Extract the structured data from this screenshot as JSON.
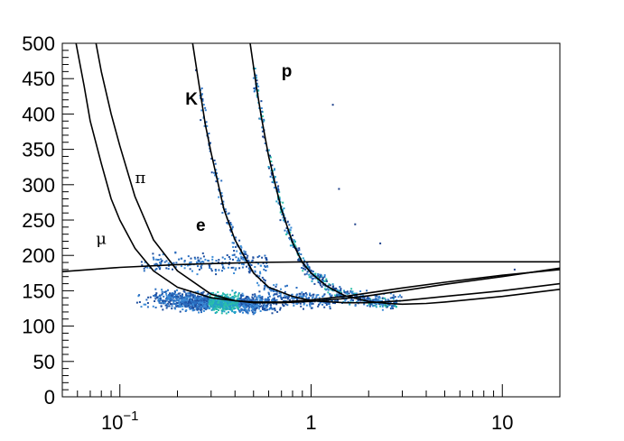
{
  "chart_data": {
    "type": "scatter",
    "title": "",
    "xlabel": "",
    "ylabel": "",
    "x_scale": "log",
    "xlim": [
      0.05,
      20
    ],
    "ylim": [
      0,
      500
    ],
    "grid": false,
    "x_ticks": [
      {
        "value": 0.1,
        "base": "10",
        "exp": "−1"
      },
      {
        "value": 1,
        "base": "1",
        "exp": ""
      },
      {
        "value": 10,
        "base": "10",
        "exp": ""
      }
    ],
    "y_ticks": [
      {
        "value": 0,
        "label": "0"
      },
      {
        "value": 50,
        "label": "50"
      },
      {
        "value": 100,
        "label": "100"
      },
      {
        "value": 150,
        "label": "150"
      },
      {
        "value": 200,
        "label": "200"
      },
      {
        "value": 250,
        "label": "250"
      },
      {
        "value": 300,
        "label": "300"
      },
      {
        "value": 350,
        "label": "350"
      },
      {
        "value": 400,
        "label": "400"
      },
      {
        "value": 450,
        "label": "450"
      },
      {
        "value": 500,
        "label": "500"
      }
    ],
    "curve_labels": [
      {
        "text": "p",
        "x": 0.7,
        "y": 453,
        "style": "bold"
      },
      {
        "text": "K",
        "x": 0.22,
        "y": 413,
        "style": "bold"
      },
      {
        "text": "π",
        "x": 0.12,
        "y": 302,
        "style": "greek"
      },
      {
        "text": "e",
        "x": 0.25,
        "y": 235,
        "style": "bold"
      },
      {
        "text": "μ",
        "x": 0.075,
        "y": 216,
        "style": "greek"
      }
    ],
    "series": [
      {
        "x": [
          0.05,
          0.1,
          0.2,
          0.5,
          1,
          2,
          5,
          10,
          20
        ],
        "y": [
          177,
          183,
          187,
          190,
          191,
          191,
          191,
          191,
          191
        ]
      },
      {
        "x": [
          0.059,
          0.065,
          0.07,
          0.08,
          0.09,
          0.1,
          0.12,
          0.15,
          0.2,
          0.3,
          0.4,
          0.5,
          0.7,
          1,
          1.5,
          2,
          3,
          5,
          10,
          20
        ],
        "y": [
          500,
          440,
          390,
          330,
          280,
          250,
          210,
          178,
          155,
          140,
          136,
          134,
          134,
          137,
          142,
          147,
          154,
          162,
          172,
          180
        ]
      },
      {
        "x": [
          0.075,
          0.08,
          0.09,
          0.1,
          0.12,
          0.15,
          0.2,
          0.3,
          0.4,
          0.5,
          0.7,
          1,
          1.5,
          2,
          3,
          5,
          10,
          20
        ],
        "y": [
          500,
          460,
          400,
          355,
          283,
          222,
          178,
          145,
          136,
          133,
          133,
          135,
          139,
          143,
          150,
          159,
          170,
          182
        ]
      },
      {
        "x": [
          0.24,
          0.26,
          0.28,
          0.3,
          0.35,
          0.4,
          0.5,
          0.6,
          0.8,
          1,
          1.5,
          2,
          3,
          5,
          10,
          20
        ],
        "y": [
          500,
          440,
          385,
          345,
          265,
          222,
          175,
          155,
          142,
          136,
          133,
          133,
          136,
          142,
          150,
          160
        ]
      },
      {
        "x": [
          0.48,
          0.52,
          0.55,
          0.6,
          0.65,
          0.7,
          0.8,
          0.9,
          1,
          1.2,
          1.5,
          2,
          2.5,
          3,
          4,
          5,
          10,
          20
        ],
        "y": [
          500,
          435,
          395,
          340,
          300,
          265,
          218,
          190,
          175,
          157,
          143,
          135,
          132,
          131,
          132,
          134,
          142,
          152
        ]
      }
    ]
  }
}
